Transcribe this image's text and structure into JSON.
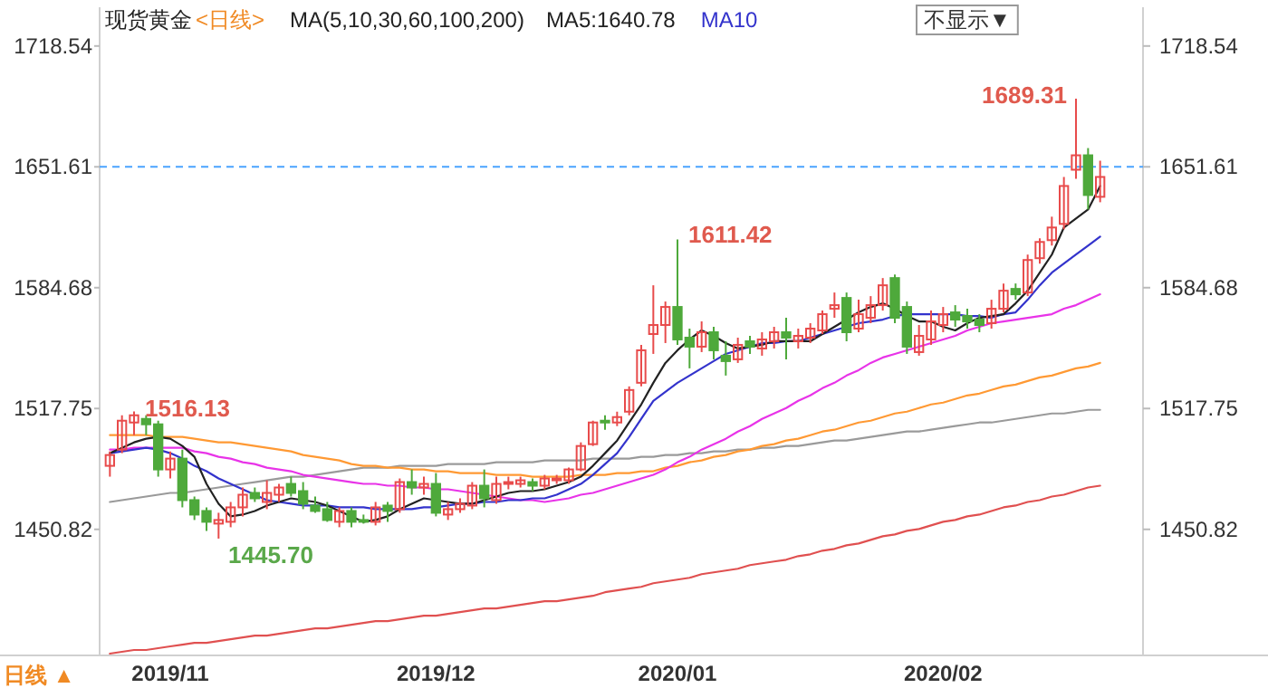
{
  "chart_data": {
    "type": "candlestick",
    "title": "现货黄金",
    "subtitle": "<日线>",
    "legend_title": "MA(5,10,30,60,100,200)",
    "legend": "top",
    "categories": [
      null,
      null,
      null,
      null,
      null,
      "2019/11",
      null,
      null,
      null,
      null,
      null,
      null,
      null,
      null,
      null,
      null,
      null,
      null,
      null,
      null,
      null,
      null,
      null,
      null,
      null,
      null,
      null,
      "2019/12",
      null,
      null,
      null,
      null,
      null,
      null,
      null,
      null,
      null,
      null,
      null,
      null,
      null,
      null,
      null,
      null,
      null,
      null,
      null,
      "2020/01",
      null,
      null,
      null,
      null,
      null,
      null,
      null,
      null,
      null,
      null,
      null,
      null,
      null,
      null,
      null,
      null,
      null,
      null,
      null,
      null,
      null,
      "2020/02",
      null,
      null,
      null,
      null,
      null,
      null,
      null,
      null,
      null,
      null,
      null,
      null,
      null
    ],
    "ylim": [
      1381,
      1740
    ],
    "yticks": [
      1450.82,
      1517.75,
      1584.68,
      1651.61,
      1718.54
    ],
    "y2lim": [
      1381,
      1740
    ],
    "y2ticks": [
      1450.82,
      1517.75,
      1584.68,
      1651.61,
      1718.54
    ],
    "ref_lines": [
      {
        "axis": "y",
        "value": 1651.61,
        "color": "#4aa3ff",
        "line_style": "dashed"
      }
    ],
    "annotations": [
      "不显示▼",
      "日线 ▲",
      "1516.13",
      "1445.70",
      "1611.42",
      "1689.31"
    ],
    "series": [
      {
        "type": "line",
        "color": "#e05050",
        "values": [
          1382,
          1383,
          1384,
          1384,
          1385,
          1386,
          1387,
          1388,
          1388,
          1389,
          1390,
          1391,
          1392,
          1392,
          1393,
          1394,
          1395,
          1396,
          1396,
          1397,
          1398,
          1399,
          1400,
          1400,
          1401,
          1402,
          1403,
          1403,
          1404,
          1405,
          1406,
          1407,
          1407,
          1408,
          1409,
          1410,
          1411,
          1411,
          1412,
          1413,
          1414,
          1416,
          1417,
          1418,
          1419,
          1421,
          1422,
          1423,
          1424,
          1426,
          1427,
          1428,
          1429,
          1431,
          1432,
          1433,
          1434,
          1436,
          1437,
          1439,
          1440,
          1442,
          1443,
          1445,
          1447,
          1448,
          1450,
          1451,
          1453,
          1455,
          1456,
          1458,
          1459,
          1461,
          1463,
          1464,
          1466,
          1467,
          1469,
          1470,
          1472,
          1474,
          1475
        ]
      },
      {
        "type": "line",
        "color": "#9a9a9a",
        "values": [
          1466,
          1467,
          1468,
          1469,
          1470,
          1471,
          1471,
          1472,
          1473,
          1474,
          1475,
          1476,
          1477,
          1478,
          1479,
          1480,
          1480,
          1481,
          1482,
          1483,
          1484,
          1485,
          1485,
          1485,
          1486,
          1486,
          1486,
          1486,
          1487,
          1487,
          1487,
          1487,
          1488,
          1488,
          1488,
          1488,
          1489,
          1489,
          1489,
          1489,
          1490,
          1490,
          1490,
          1490,
          1491,
          1491,
          1492,
          1492,
          1493,
          1493,
          1494,
          1494,
          1495,
          1495,
          1496,
          1496,
          1497,
          1497,
          1498,
          1499,
          1500,
          1500,
          1501,
          1502,
          1503,
          1504,
          1505,
          1505,
          1506,
          1507,
          1508,
          1509,
          1510,
          1510,
          1511,
          1512,
          1513,
          1514,
          1515,
          1515,
          1516,
          1517,
          1517
        ]
      },
      {
        "type": "line",
        "color": "#ff9933",
        "values": [
          1503,
          1503,
          1503,
          1503,
          1502,
          1502,
          1502,
          1501,
          1500,
          1499,
          1499,
          1498,
          1497,
          1496,
          1495,
          1494,
          1492,
          1491,
          1490,
          1489,
          1487,
          1486,
          1486,
          1485,
          1485,
          1484,
          1484,
          1483,
          1483,
          1482,
          1482,
          1482,
          1481,
          1481,
          1481,
          1480,
          1480,
          1480,
          1480,
          1481,
          1481,
          1481,
          1482,
          1482,
          1483,
          1483,
          1485,
          1486,
          1488,
          1489,
          1491,
          1492,
          1494,
          1495,
          1497,
          1498,
          1500,
          1501,
          1503,
          1505,
          1506,
          1508,
          1510,
          1511,
          1513,
          1515,
          1516,
          1518,
          1520,
          1521,
          1523,
          1525,
          1526,
          1528,
          1530,
          1531,
          1533,
          1535,
          1536,
          1538,
          1540,
          1541,
          1543
        ]
      },
      {
        "type": "line",
        "color": "#e833e8",
        "values": [
          1495,
          1495,
          1496,
          1496,
          1496,
          1496,
          1496,
          1494,
          1493,
          1491,
          1490,
          1488,
          1487,
          1485,
          1484,
          1483,
          1481,
          1480,
          1479,
          1478,
          1477,
          1476,
          1476,
          1475,
          1475,
          1474,
          1474,
          1473,
          1473,
          1472,
          1471,
          1470,
          1469,
          1468,
          1467,
          1467,
          1466,
          1467,
          1468,
          1470,
          1471,
          1473,
          1475,
          1477,
          1479,
          1481,
          1484,
          1488,
          1491,
          1495,
          1498,
          1501,
          1505,
          1508,
          1512,
          1515,
          1518,
          1522,
          1525,
          1529,
          1532,
          1536,
          1539,
          1543,
          1546,
          1548,
          1550,
          1552,
          1554,
          1556,
          1558,
          1561,
          1563,
          1565,
          1566,
          1567,
          1568,
          1569,
          1570,
          1573,
          1575,
          1578,
          1581
        ]
      },
      {
        "type": "line",
        "name": "MA10",
        "color": "#3333cc",
        "values": [
          1493,
          1494,
          1495,
          1496,
          1495,
          1493,
          1490,
          1486,
          1483,
          1479,
          1476,
          1473,
          1470,
          1467,
          1466,
          1465,
          1464,
          1464,
          1464,
          1463,
          1463,
          1463,
          1462,
          1462,
          1462,
          1462,
          1463,
          1463,
          1464,
          1465,
          1465,
          1466,
          1466,
          1467,
          1467,
          1468,
          1468,
          1470,
          1473,
          1476,
          1481,
          1487,
          1493,
          1502,
          1512,
          1522,
          1527,
          1532,
          1536,
          1540,
          1544,
          1548,
          1550,
          1552,
          1554,
          1554,
          1555,
          1555,
          1557,
          1559,
          1561,
          1563,
          1565,
          1566,
          1567,
          1569,
          1570,
          1570,
          1570,
          1570,
          1570,
          1569,
          1569,
          1568,
          1570,
          1571,
          1578,
          1586,
          1593,
          1598,
          1603,
          1608,
          1613
        ]
      },
      {
        "type": "line",
        "name": "MA5:1640.78",
        "color": "#222222",
        "values": [
          1493,
          1496,
          1499,
          1501,
          1502,
          1501,
          1497,
          1491,
          1476,
          1465,
          1458,
          1459,
          1461,
          1464,
          1466,
          1468,
          1467,
          1466,
          1464,
          1461,
          1458,
          1455,
          1456,
          1458,
          1462,
          1465,
          1468,
          1467,
          1466,
          1465,
          1465,
          1467,
          1469,
          1471,
          1472,
          1472,
          1473,
          1475,
          1477,
          1480,
          1486,
          1493,
          1500,
          1510,
          1520,
          1532,
          1543,
          1550,
          1556,
          1561,
          1558,
          1554,
          1551,
          1552,
          1553,
          1555,
          1555,
          1555,
          1555,
          1559,
          1563,
          1567,
          1571,
          1574,
          1576,
          1573,
          1569,
          1566,
          1566,
          1563,
          1561,
          1565,
          1568,
          1569,
          1570,
          1576,
          1583,
          1593,
          1603,
          1618,
          1623,
          1628,
          1641
        ]
      },
      {
        "ohlc": [
          [
            1486,
            1494,
            1480,
            1492
          ],
          [
            1495,
            1514,
            1493,
            1511
          ],
          [
            1510,
            1516.13,
            1503,
            1514
          ],
          [
            1512,
            1514,
            1503,
            1509
          ],
          [
            1509,
            1511,
            1480,
            1484
          ],
          [
            1484,
            1494,
            1479,
            1490
          ],
          [
            1490,
            1495,
            1463,
            1467
          ],
          [
            1467,
            1469,
            1456,
            1459
          ],
          [
            1461,
            1463,
            1450,
            1455
          ],
          [
            1454,
            1460,
            1445.7,
            1456
          ],
          [
            1455,
            1466,
            1452,
            1463
          ],
          [
            1463,
            1474,
            1458,
            1470
          ],
          [
            1471,
            1474,
            1466,
            1468
          ],
          [
            1466,
            1478,
            1462,
            1471
          ],
          [
            1470,
            1476,
            1466,
            1474
          ],
          [
            1476,
            1480,
            1469,
            1471
          ],
          [
            1472,
            1477,
            1462,
            1465
          ],
          [
            1464,
            1469,
            1460,
            1461
          ],
          [
            1462,
            1466,
            1455,
            1456
          ],
          [
            1455,
            1463,
            1452,
            1461
          ],
          [
            1461,
            1463,
            1452,
            1455
          ],
          [
            1456,
            1459,
            1454,
            1455
          ],
          [
            1455,
            1466,
            1453,
            1463
          ],
          [
            1464,
            1466,
            1455,
            1461
          ],
          [
            1462,
            1479,
            1460,
            1477
          ],
          [
            1477,
            1484,
            1470,
            1474
          ],
          [
            1474,
            1480,
            1470,
            1476
          ],
          [
            1476,
            1482,
            1458,
            1460
          ],
          [
            1459,
            1466,
            1456,
            1462
          ],
          [
            1462,
            1468,
            1460,
            1465
          ],
          [
            1464,
            1477,
            1462,
            1475
          ],
          [
            1475,
            1484,
            1463,
            1468
          ],
          [
            1467,
            1480,
            1465,
            1476
          ],
          [
            1476,
            1480,
            1473,
            1477
          ],
          [
            1476,
            1480,
            1474,
            1478
          ],
          [
            1477,
            1479,
            1472,
            1475
          ],
          [
            1475,
            1481,
            1473,
            1479
          ],
          [
            1478,
            1481,
            1476,
            1479
          ],
          [
            1478,
            1485,
            1476,
            1484
          ],
          [
            1484,
            1499,
            1483,
            1497
          ],
          [
            1498,
            1511,
            1497,
            1510
          ],
          [
            1511,
            1514,
            1506,
            1510
          ],
          [
            1510,
            1516,
            1508,
            1513
          ],
          [
            1516,
            1530,
            1514,
            1528
          ],
          [
            1532,
            1553,
            1530,
            1550
          ],
          [
            1559,
            1586,
            1548,
            1564
          ],
          [
            1564,
            1577,
            1554,
            1574
          ],
          [
            1574,
            1611.42,
            1553,
            1556
          ],
          [
            1557,
            1562,
            1540,
            1552
          ],
          [
            1552,
            1566,
            1549,
            1560
          ],
          [
            1560,
            1563,
            1545,
            1550
          ],
          [
            1547,
            1555,
            1536,
            1544
          ],
          [
            1545,
            1557,
            1543,
            1553
          ],
          [
            1555,
            1558,
            1548,
            1552
          ],
          [
            1551,
            1560,
            1547,
            1556
          ],
          [
            1555,
            1563,
            1551,
            1560
          ],
          [
            1560,
            1568,
            1545,
            1557
          ],
          [
            1555,
            1562,
            1551,
            1558
          ],
          [
            1557,
            1565,
            1554,
            1562
          ],
          [
            1561,
            1572,
            1559,
            1570
          ],
          [
            1573,
            1582,
            1568,
            1575
          ],
          [
            1579,
            1582,
            1555,
            1560
          ],
          [
            1562,
            1578,
            1560,
            1570
          ],
          [
            1568,
            1580,
            1565,
            1575
          ],
          [
            1575,
            1590,
            1572,
            1586
          ],
          [
            1590,
            1592,
            1565,
            1568
          ],
          [
            1574,
            1577,
            1548,
            1552
          ],
          [
            1549,
            1564,
            1547,
            1558
          ],
          [
            1556,
            1572,
            1553,
            1566
          ],
          [
            1564,
            1574,
            1560,
            1570
          ],
          [
            1571,
            1575,
            1563,
            1567
          ],
          [
            1569,
            1573,
            1562,
            1566
          ],
          [
            1567,
            1570,
            1560,
            1564
          ],
          [
            1565,
            1578,
            1562,
            1573
          ],
          [
            1573,
            1587,
            1571,
            1583
          ],
          [
            1584,
            1587,
            1578,
            1581
          ],
          [
            1582,
            1603,
            1580,
            1600
          ],
          [
            1601,
            1612,
            1598,
            1610
          ],
          [
            1611,
            1624,
            1608,
            1618
          ],
          [
            1620,
            1646,
            1617,
            1641
          ],
          [
            1650,
            1689.31,
            1645,
            1658
          ],
          [
            1658,
            1662,
            1628,
            1636
          ],
          [
            1635,
            1655,
            1632,
            1646
          ]
        ],
        "colors": [
          "#e84b4b",
          "#e84b4b",
          "#e84b4b",
          "#4ea93b",
          "#4ea93b",
          "#e84b4b",
          "#4ea93b",
          "#4ea93b",
          "#4ea93b",
          "#e84b4b",
          "#e84b4b",
          "#e84b4b",
          "#4ea93b",
          "#e84b4b",
          "#e84b4b",
          "#4ea93b",
          "#4ea93b",
          "#4ea93b",
          "#4ea93b",
          "#e84b4b",
          "#4ea93b",
          "#4ea93b",
          "#e84b4b",
          "#4ea93b",
          "#e84b4b",
          "#4ea93b",
          "#e84b4b",
          "#4ea93b",
          "#e84b4b",
          "#e84b4b",
          "#e84b4b",
          "#4ea93b",
          "#e84b4b",
          "#e84b4b",
          "#e84b4b",
          "#4ea93b",
          "#e84b4b",
          "#e84b4b",
          "#e84b4b",
          "#e84b4b",
          "#e84b4b",
          "#4ea93b",
          "#e84b4b",
          "#e84b4b",
          "#e84b4b",
          "#e84b4b",
          "#e84b4b",
          "#4ea93b",
          "#4ea93b",
          "#e84b4b",
          "#4ea93b",
          "#4ea93b",
          "#e84b4b",
          "#4ea93b",
          "#e84b4b",
          "#e84b4b",
          "#4ea93b",
          "#e84b4b",
          "#e84b4b",
          "#e84b4b",
          "#e84b4b",
          "#4ea93b",
          "#e84b4b",
          "#e84b4b",
          "#e84b4b",
          "#4ea93b",
          "#4ea93b",
          "#e84b4b",
          "#e84b4b",
          "#e84b4b",
          "#4ea93b",
          "#4ea93b",
          "#4ea93b",
          "#e84b4b",
          "#e84b4b",
          "#4ea93b",
          "#e84b4b",
          "#e84b4b",
          "#e84b4b",
          "#e84b4b",
          "#e84b4b",
          "#4ea93b",
          "#e84b4b"
        ]
      }
    ]
  }
}
